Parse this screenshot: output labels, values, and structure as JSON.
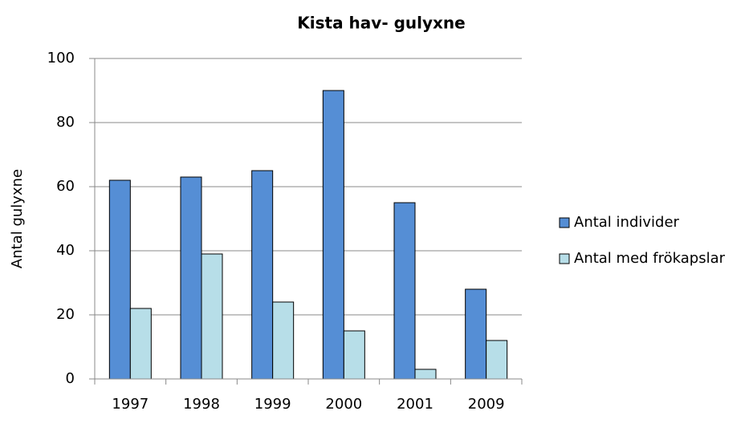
{
  "chart_data": {
    "type": "bar",
    "title": "Kista hav- gulyxne",
    "y_label": "Antal gulyxne",
    "categories": [
      "1997",
      "1998",
      "1999",
      "2000",
      "2001",
      "2009"
    ],
    "series": [
      {
        "name": "Antal individer",
        "color": "#558ed5",
        "values": [
          62,
          63,
          65,
          90,
          55,
          28
        ]
      },
      {
        "name": "Antal med frökapslar",
        "color": "#b7dee8",
        "values": [
          22,
          39,
          24,
          15,
          3,
          12
        ]
      }
    ],
    "ylim": [
      0,
      100
    ],
    "yticks": [
      0,
      20,
      40,
      60,
      80,
      100
    ],
    "grid": true,
    "legend": "right"
  }
}
